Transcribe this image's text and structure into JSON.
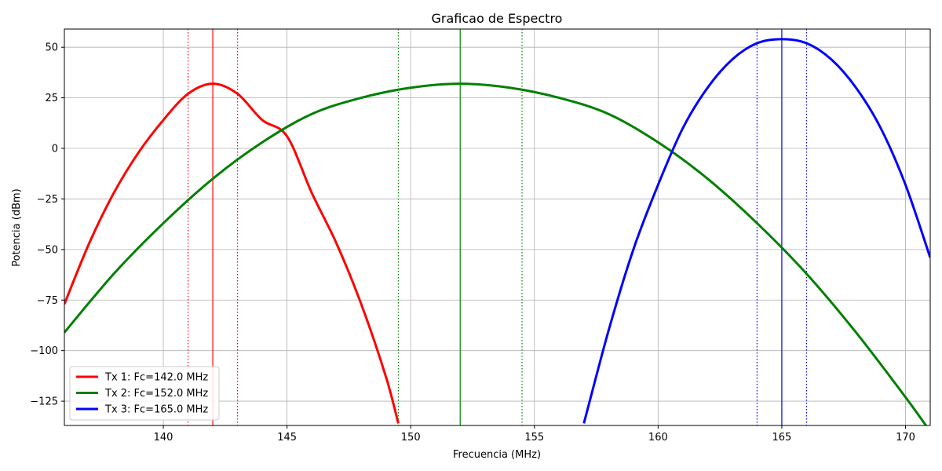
{
  "chart_data": {
    "type": "line",
    "title": "Graficao de Espectro",
    "xlabel": "Frecuencia (MHz)",
    "ylabel": "Potencia (dBm)",
    "xlim": [
      136,
      171
    ],
    "ylim": [
      -137,
      59
    ],
    "x_ticks": [
      140,
      145,
      150,
      155,
      160,
      165,
      170
    ],
    "y_ticks": [
      50,
      25,
      0,
      -25,
      -50,
      -75,
      -100,
      -125
    ],
    "grid": true,
    "legend_position": "lower-left",
    "series": [
      {
        "name": "Tx 1: Fc=142.0 MHz",
        "color": "#ff0000",
        "fc": 142.0,
        "peak": 32,
        "x": [
          136,
          137,
          138,
          139,
          140,
          141,
          142,
          143,
          144,
          145,
          146,
          147,
          148,
          149,
          149.5
        ],
        "y": [
          -77,
          -47,
          -22,
          -2,
          14,
          27,
          32,
          27,
          14,
          6,
          -22,
          -47,
          -77,
          -113,
          -136
        ],
        "bandwidth_markers": [
          141.0,
          143.0
        ]
      },
      {
        "name": "Tx 2: Fc=152.0 MHz",
        "color": "#008000",
        "fc": 152.0,
        "peak": 32,
        "x": [
          136,
          138,
          140,
          142,
          144,
          146,
          148,
          150,
          152,
          154,
          156,
          158,
          160,
          162,
          164,
          166,
          168,
          170,
          171
        ],
        "y": [
          -91,
          -62,
          -37,
          -15,
          3,
          17,
          25,
          30,
          32,
          30,
          25,
          17,
          3,
          -15,
          -37,
          -62,
          -91,
          -123,
          -140
        ],
        "bandwidth_markers": [
          149.5,
          154.5
        ]
      },
      {
        "name": "Tx 3: Fc=165.0 MHz",
        "color": "#0000ff",
        "fc": 165.0,
        "peak": 54,
        "x": [
          157,
          158,
          159,
          160,
          161,
          162,
          163,
          164,
          165,
          166,
          167,
          168,
          169,
          170,
          171
        ],
        "y": [
          -136,
          -90,
          -50,
          -18,
          10,
          30,
          44,
          52,
          54,
          52,
          44,
          30,
          10,
          -18,
          -54
        ],
        "bandwidth_markers": [
          164.0,
          166.0
        ]
      }
    ]
  }
}
